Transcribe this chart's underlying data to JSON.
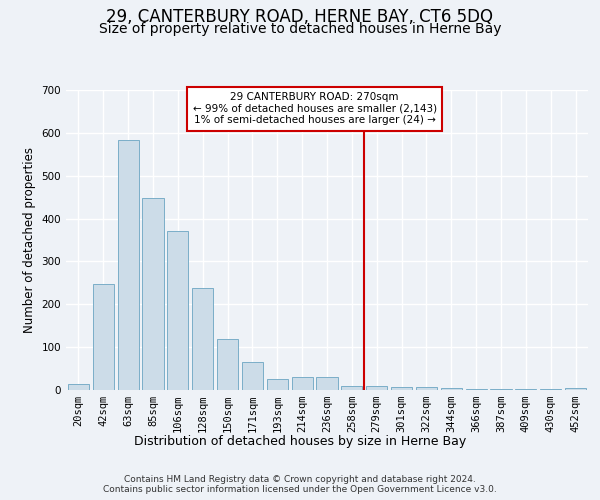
{
  "title": "29, CANTERBURY ROAD, HERNE BAY, CT6 5DQ",
  "subtitle": "Size of property relative to detached houses in Herne Bay",
  "xlabel": "Distribution of detached houses by size in Herne Bay",
  "ylabel": "Number of detached properties",
  "bar_labels": [
    "20sqm",
    "42sqm",
    "63sqm",
    "85sqm",
    "106sqm",
    "128sqm",
    "150sqm",
    "171sqm",
    "193sqm",
    "214sqm",
    "236sqm",
    "258sqm",
    "279sqm",
    "301sqm",
    "322sqm",
    "344sqm",
    "366sqm",
    "387sqm",
    "409sqm",
    "430sqm",
    "452sqm"
  ],
  "bar_values": [
    15,
    248,
    583,
    448,
    370,
    237,
    120,
    65,
    25,
    30,
    30,
    10,
    10,
    8,
    8,
    4,
    3,
    3,
    2,
    2,
    5
  ],
  "bar_color": "#ccdce8",
  "bar_edgecolor": "#7aaec8",
  "ylim": [
    0,
    700
  ],
  "yticks": [
    0,
    100,
    200,
    300,
    400,
    500,
    600,
    700
  ],
  "vline_x_index": 12,
  "vline_color": "#cc0000",
  "annotation_title": "29 CANTERBURY ROAD: 270sqm",
  "annotation_line2": "← 99% of detached houses are smaller (2,143)",
  "annotation_line3": "1% of semi-detached houses are larger (24) →",
  "annotation_box_color": "#cc0000",
  "footer_line1": "Contains HM Land Registry data © Crown copyright and database right 2024.",
  "footer_line2": "Contains public sector information licensed under the Open Government Licence v3.0.",
  "background_color": "#eef2f7",
  "grid_color": "#ffffff",
  "title_fontsize": 12,
  "subtitle_fontsize": 10,
  "xlabel_fontsize": 9,
  "ylabel_fontsize": 8.5,
  "tick_fontsize": 7.5,
  "footer_fontsize": 6.5
}
